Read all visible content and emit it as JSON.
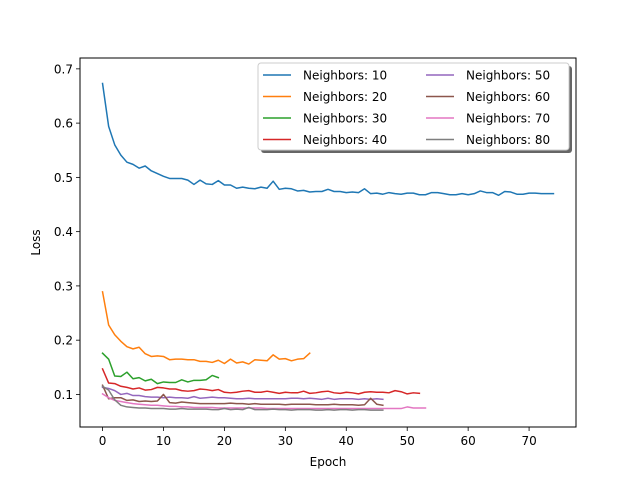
{
  "chart_data": {
    "type": "line",
    "title": "",
    "xlabel": "Epoch",
    "ylabel": "Loss",
    "xlim": [
      -3.7,
      77.7
    ],
    "ylim": [
      0.04,
      0.72
    ],
    "xticks": [
      0,
      10,
      20,
      30,
      40,
      50,
      60,
      70
    ],
    "yticks": [
      0.1,
      0.2,
      0.3,
      0.4,
      0.5,
      0.6,
      0.7
    ],
    "grid": false,
    "legend": {
      "placement": "top-right",
      "columns": 2,
      "shadow": true
    },
    "colors": {
      "n10": "#1f77b4",
      "n20": "#ff7f0e",
      "n30": "#2ca02c",
      "n40": "#d62728",
      "n50": "#9467bd",
      "n60": "#8c564b",
      "n70": "#e377c2",
      "n80": "#7f7f7f"
    },
    "series": [
      {
        "name": "Neighbors: 10",
        "color": "#1f77b4",
        "values": [
          0.673,
          0.594,
          0.56,
          0.541,
          0.528,
          0.524,
          0.517,
          0.521,
          0.512,
          0.507,
          0.502,
          0.498,
          0.498,
          0.498,
          0.495,
          0.487,
          0.495,
          0.488,
          0.487,
          0.494,
          0.486,
          0.486,
          0.48,
          0.482,
          0.48,
          0.479,
          0.482,
          0.48,
          0.493,
          0.478,
          0.48,
          0.479,
          0.475,
          0.476,
          0.473,
          0.474,
          0.474,
          0.478,
          0.474,
          0.474,
          0.472,
          0.473,
          0.472,
          0.479,
          0.47,
          0.471,
          0.469,
          0.472,
          0.47,
          0.469,
          0.471,
          0.471,
          0.468,
          0.468,
          0.472,
          0.472,
          0.47,
          0.468,
          0.468,
          0.47,
          0.468,
          0.47,
          0.475,
          0.472,
          0.472,
          0.467,
          0.474,
          0.473,
          0.469,
          0.469,
          0.471,
          0.471,
          0.47,
          0.47,
          0.47
        ]
      },
      {
        "name": "Neighbors: 20",
        "color": "#ff7f0e",
        "values": [
          0.289,
          0.228,
          0.21,
          0.198,
          0.188,
          0.184,
          0.187,
          0.175,
          0.17,
          0.171,
          0.17,
          0.164,
          0.165,
          0.165,
          0.164,
          0.164,
          0.161,
          0.161,
          0.159,
          0.163,
          0.157,
          0.165,
          0.158,
          0.16,
          0.156,
          0.164,
          0.163,
          0.162,
          0.173,
          0.165,
          0.166,
          0.162,
          0.165,
          0.166,
          0.176
        ]
      },
      {
        "name": "Neighbors: 30",
        "color": "#2ca02c",
        "values": [
          0.176,
          0.165,
          0.134,
          0.133,
          0.141,
          0.129,
          0.131,
          0.125,
          0.128,
          0.12,
          0.123,
          0.122,
          0.122,
          0.127,
          0.123,
          0.126,
          0.126,
          0.127,
          0.135,
          0.131
        ]
      },
      {
        "name": "Neighbors: 40",
        "color": "#d62728",
        "values": [
          0.147,
          0.121,
          0.12,
          0.115,
          0.113,
          0.11,
          0.112,
          0.108,
          0.109,
          0.113,
          0.112,
          0.11,
          0.11,
          0.107,
          0.106,
          0.107,
          0.11,
          0.109,
          0.107,
          0.109,
          0.104,
          0.103,
          0.104,
          0.106,
          0.107,
          0.104,
          0.104,
          0.106,
          0.104,
          0.102,
          0.104,
          0.103,
          0.103,
          0.106,
          0.102,
          0.103,
          0.105,
          0.106,
          0.103,
          0.102,
          0.104,
          0.103,
          0.101,
          0.104,
          0.105,
          0.104,
          0.104,
          0.103,
          0.107,
          0.105,
          0.101,
          0.103,
          0.102
        ]
      },
      {
        "name": "Neighbors: 50",
        "color": "#9467bd",
        "values": [
          0.113,
          0.111,
          0.107,
          0.1,
          0.102,
          0.098,
          0.098,
          0.096,
          0.095,
          0.095,
          0.094,
          0.095,
          0.094,
          0.094,
          0.093,
          0.096,
          0.093,
          0.094,
          0.095,
          0.094,
          0.094,
          0.093,
          0.092,
          0.092,
          0.093,
          0.092,
          0.092,
          0.092,
          0.092,
          0.092,
          0.092,
          0.093,
          0.093,
          0.092,
          0.093,
          0.092,
          0.091,
          0.093,
          0.091,
          0.092,
          0.092,
          0.092,
          0.091,
          0.092,
          0.091,
          0.092,
          0.091
        ]
      },
      {
        "name": "Neighbors: 60",
        "color": "#8c564b",
        "values": [
          0.117,
          0.092,
          0.094,
          0.094,
          0.089,
          0.09,
          0.087,
          0.088,
          0.087,
          0.088,
          0.1,
          0.085,
          0.084,
          0.086,
          0.085,
          0.084,
          0.083,
          0.083,
          0.083,
          0.083,
          0.083,
          0.084,
          0.083,
          0.083,
          0.082,
          0.083,
          0.082,
          0.082,
          0.082,
          0.082,
          0.081,
          0.082,
          0.082,
          0.082,
          0.082,
          0.081,
          0.081,
          0.081,
          0.082,
          0.081,
          0.081,
          0.081,
          0.08,
          0.081,
          0.093,
          0.082,
          0.08
        ]
      },
      {
        "name": "Neighbors: 70",
        "color": "#e377c2",
        "values": [
          0.101,
          0.094,
          0.089,
          0.087,
          0.085,
          0.083,
          0.082,
          0.081,
          0.08,
          0.08,
          0.079,
          0.078,
          0.078,
          0.077,
          0.077,
          0.076,
          0.076,
          0.076,
          0.076,
          0.075,
          0.075,
          0.075,
          0.075,
          0.075,
          0.075,
          0.075,
          0.075,
          0.074,
          0.074,
          0.074,
          0.074,
          0.074,
          0.074,
          0.074,
          0.074,
          0.074,
          0.074,
          0.074,
          0.074,
          0.074,
          0.074,
          0.074,
          0.074,
          0.074,
          0.074,
          0.074,
          0.074,
          0.074,
          0.074,
          0.074,
          0.077,
          0.075,
          0.075,
          0.075
        ]
      },
      {
        "name": "Neighbors: 80",
        "color": "#7f7f7f",
        "values": [
          0.115,
          0.108,
          0.09,
          0.08,
          0.077,
          0.076,
          0.075,
          0.075,
          0.074,
          0.074,
          0.074,
          0.073,
          0.073,
          0.074,
          0.073,
          0.073,
          0.073,
          0.073,
          0.072,
          0.072,
          0.074,
          0.072,
          0.073,
          0.072,
          0.076,
          0.072,
          0.072,
          0.072,
          0.073,
          0.072,
          0.072,
          0.071,
          0.072,
          0.072,
          0.072,
          0.071,
          0.071,
          0.072,
          0.071,
          0.072,
          0.072,
          0.071,
          0.072,
          0.072,
          0.071,
          0.071,
          0.071
        ]
      }
    ]
  }
}
